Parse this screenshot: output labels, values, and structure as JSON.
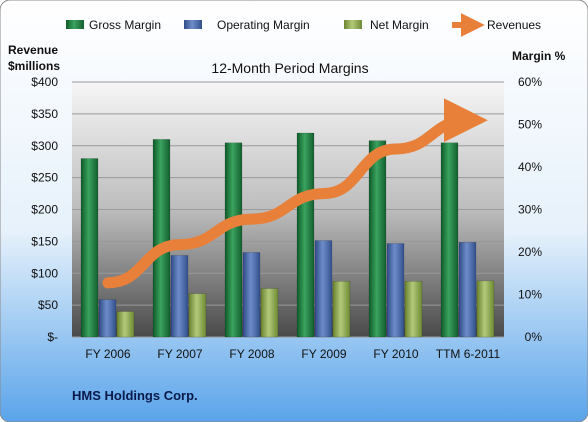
{
  "chart_data": {
    "type": "bar",
    "title": "12-Month Period Margins",
    "left_axis_title": [
      "Revenue",
      "$millions"
    ],
    "right_axis_title": "Margin %",
    "categories": [
      "FY 2006",
      "FY 2007",
      "FY 2008",
      "FY 2009",
      "FY 2010",
      "TTM 6-2011"
    ],
    "left_ticks": [
      "$-",
      "$50",
      "$100",
      "$150",
      "$200",
      "$250",
      "$300",
      "$350",
      "$400"
    ],
    "right_ticks": [
      "0%",
      "10%",
      "20%",
      "30%",
      "40%",
      "50%",
      "60%"
    ],
    "ylim_left": [
      0,
      400
    ],
    "ylim_right": [
      0,
      60
    ],
    "series": [
      {
        "name": "Gross Margin",
        "type": "bar",
        "axis": "right",
        "color": "#1e7a3e",
        "values": [
          42,
          46.5,
          45.7,
          48,
          46.2,
          45.7
        ]
      },
      {
        "name": "Operating Margin",
        "type": "bar",
        "axis": "right",
        "color": "#4a6aa8",
        "values": [
          8.8,
          19.2,
          19.9,
          22.7,
          22.0,
          22.3
        ]
      },
      {
        "name": "Net Margin",
        "type": "bar",
        "axis": "right",
        "color": "#8fa84a",
        "values": [
          6.0,
          10.2,
          11.4,
          13.1,
          13.1,
          13.2
        ]
      },
      {
        "name": "Revenues",
        "type": "line",
        "axis": "left",
        "color": "#e8803a",
        "values": [
          85,
          145,
          185,
          225,
          295,
          340
        ]
      }
    ],
    "grid": true,
    "legend": "top",
    "footer": "HMS Holdings Corp."
  }
}
